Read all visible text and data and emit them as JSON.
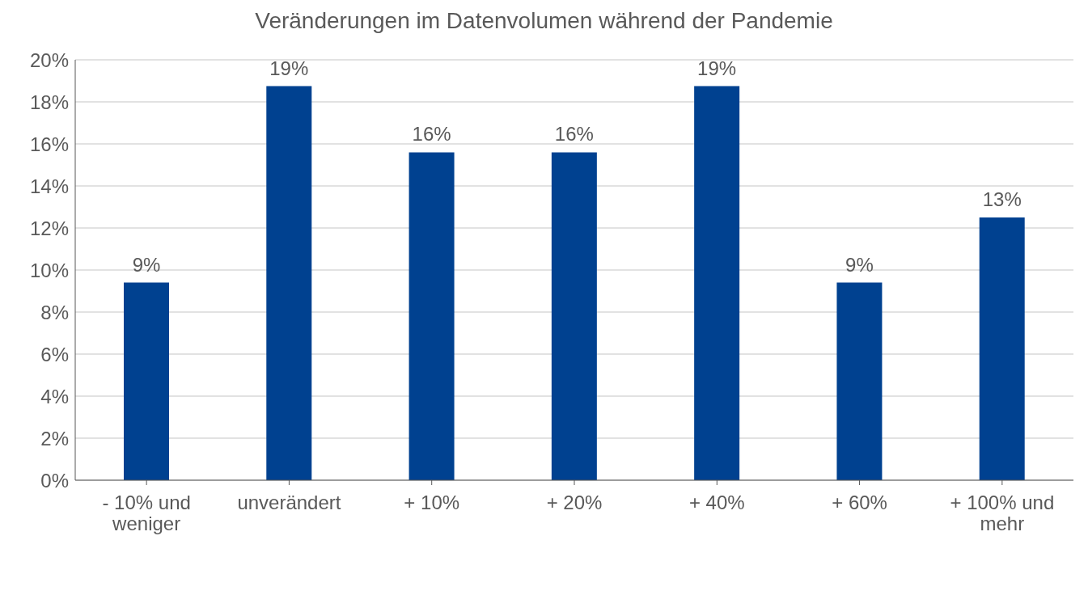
{
  "chart_data": {
    "type": "bar",
    "title": "Veränderungen im Datenvolumen während der Pandemie",
    "categories": [
      "- 10% und weniger",
      "unverändert",
      "+ 10%",
      "+ 20%",
      "+ 40%",
      "+ 60%",
      "+ 100% und mehr"
    ],
    "values": [
      9.4,
      18.75,
      15.6,
      15.6,
      18.75,
      9.4,
      12.5
    ],
    "value_labels": [
      "9%",
      "19%",
      "16%",
      "16%",
      "19%",
      "9%",
      "13%"
    ],
    "color": "#004190",
    "ylim": [
      0,
      20
    ],
    "yticks": [
      {
        "value": 0,
        "label": "0%"
      },
      {
        "value": 2,
        "label": "2%"
      },
      {
        "value": 4,
        "label": "4%"
      },
      {
        "value": 6,
        "label": "6%"
      },
      {
        "value": 8,
        "label": "8%"
      },
      {
        "value": 10,
        "label": "10%"
      },
      {
        "value": 12,
        "label": "12%"
      },
      {
        "value": 14,
        "label": "14%"
      },
      {
        "value": 16,
        "label": "16%"
      },
      {
        "value": 18,
        "label": "18%"
      },
      {
        "value": 20,
        "label": "20%"
      }
    ],
    "grid": "y",
    "legend": false
  }
}
